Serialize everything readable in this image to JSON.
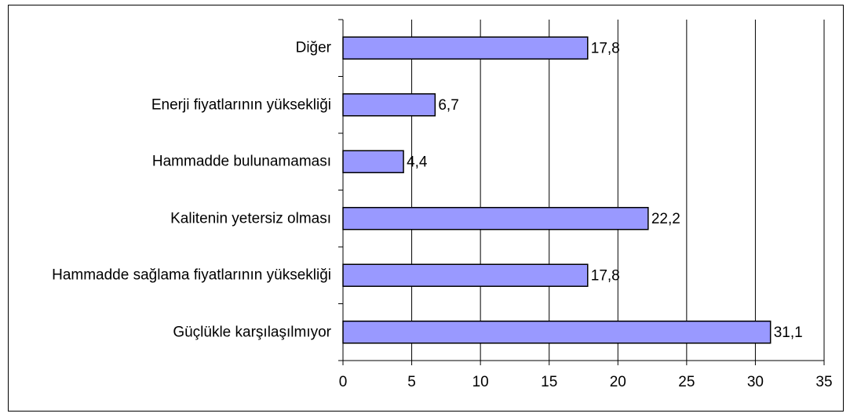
{
  "chart_data": {
    "type": "bar",
    "orientation": "horizontal",
    "categories": [
      "Diğer",
      "Enerji fiyatlarının yüksekliği",
      "Hammadde bulunamaması",
      "Kalitenin yetersiz olması",
      "Hammadde sağlama fiyatlarının yüksekliği",
      "Güçlükle karşılaşılmıyor"
    ],
    "values": [
      17.8,
      6.7,
      4.4,
      22.2,
      17.8,
      31.1
    ],
    "value_labels": [
      "17,8",
      "6,7",
      "4,4",
      "22,2",
      "17,8",
      "31,1"
    ],
    "color": "#9999ff",
    "xlim": [
      0,
      35
    ],
    "xticks": [
      0,
      5,
      10,
      15,
      20,
      25,
      30,
      35
    ],
    "grid": true
  }
}
